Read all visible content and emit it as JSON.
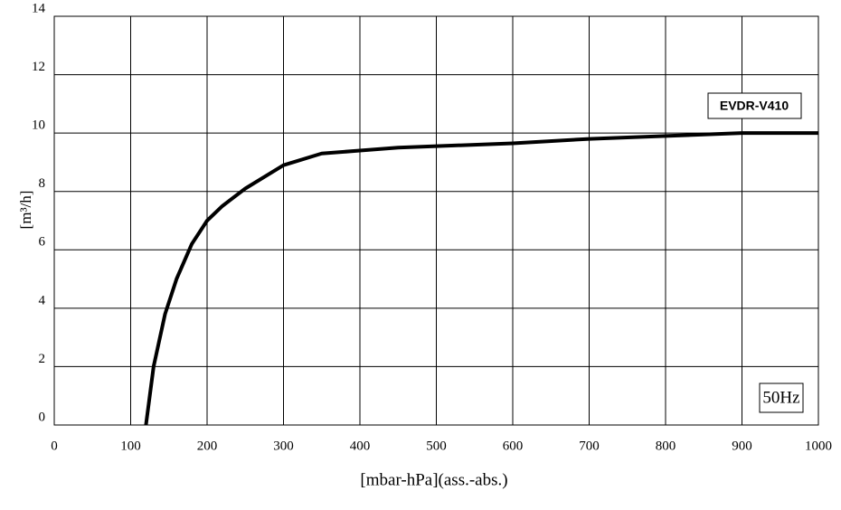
{
  "chart_data": {
    "type": "line",
    "xlabel": "[mbar-hPa](ass.-abs.)",
    "ylabel": "[m³/h]",
    "annotations": [
      "50Hz"
    ],
    "x": [
      120,
      130,
      145,
      160,
      180,
      200,
      220,
      250,
      300,
      350,
      400,
      450,
      500,
      600,
      700,
      800,
      900,
      1000
    ],
    "series": [
      {
        "name": "EVDR-V410",
        "color": "#000000",
        "values": [
          0,
          2,
          3.8,
          5,
          6.2,
          7,
          7.5,
          8.1,
          8.9,
          9.3,
          9.4,
          9.5,
          9.55,
          9.65,
          9.8,
          9.9,
          10,
          10
        ]
      }
    ],
    "xlim": [
      0,
      1000
    ],
    "xticks": [
      0,
      100,
      200,
      300,
      400,
      500,
      600,
      700,
      800,
      900,
      1000
    ],
    "ylim": [
      0,
      14
    ],
    "yticks": [
      0,
      2,
      4,
      6,
      8,
      10,
      12,
      14
    ],
    "grid": true
  }
}
